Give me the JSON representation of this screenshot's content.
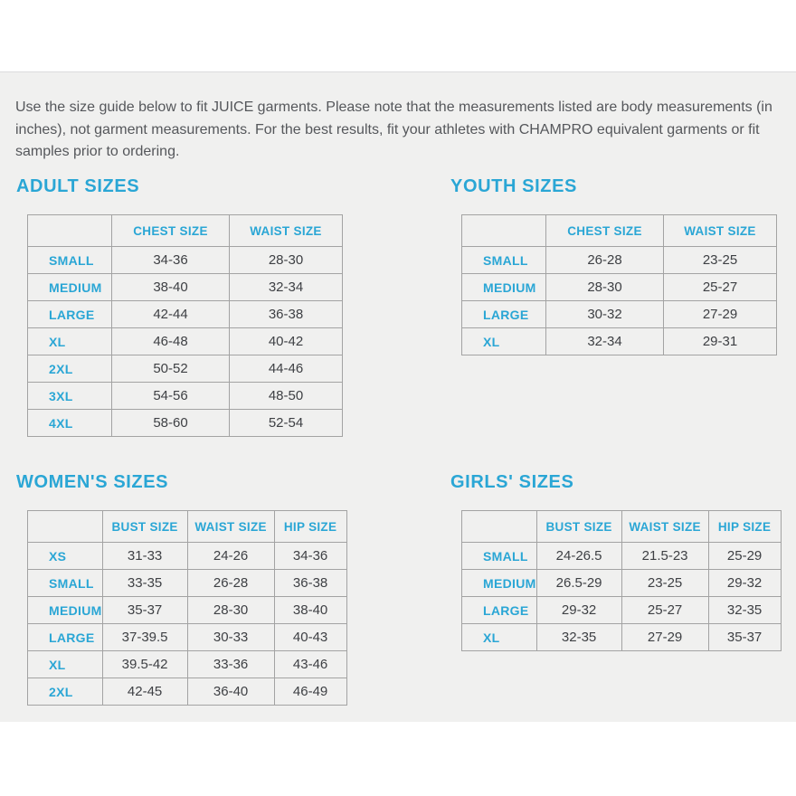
{
  "intro_text": "Use the size guide below to fit JUICE garments. Please note that the measurements listed are body measurements (in inches), not garment measurements. For the best results, fit your athletes with CHAMPRO equivalent garments or fit samples prior to ordering.",
  "colors": {
    "accent": "#2aa6d5",
    "body_text": "#55575b",
    "value_text": "#3e4044",
    "table_border": "#a3a3a3",
    "section_background": "#f0f0ef"
  },
  "tables": [
    {
      "title": "ADULT SIZES",
      "columns": [
        "",
        "CHEST SIZE",
        "WAIST SIZE"
      ],
      "rows": [
        {
          "label": "SMALL",
          "values": [
            "34-36",
            "28-30"
          ]
        },
        {
          "label": "MEDIUM",
          "values": [
            "38-40",
            "32-34"
          ]
        },
        {
          "label": "LARGE",
          "values": [
            "42-44",
            "36-38"
          ]
        },
        {
          "label": "XL",
          "values": [
            "46-48",
            "40-42"
          ]
        },
        {
          "label": "2XL",
          "values": [
            "50-52",
            "44-46"
          ]
        },
        {
          "label": "3XL",
          "values": [
            "54-56",
            "48-50"
          ]
        },
        {
          "label": "4XL",
          "values": [
            "58-60",
            "52-54"
          ]
        }
      ]
    },
    {
      "title": "YOUTH SIZES",
      "columns": [
        "",
        "CHEST SIZE",
        "WAIST SIZE"
      ],
      "rows": [
        {
          "label": "SMALL",
          "values": [
            "26-28",
            "23-25"
          ]
        },
        {
          "label": "MEDIUM",
          "values": [
            "28-30",
            "25-27"
          ]
        },
        {
          "label": "LARGE",
          "values": [
            "30-32",
            "27-29"
          ]
        },
        {
          "label": "XL",
          "values": [
            "32-34",
            "29-31"
          ]
        }
      ]
    },
    {
      "title": "WOMEN'S SIZES",
      "columns": [
        "",
        "BUST SIZE",
        "WAIST SIZE",
        "HIP SIZE"
      ],
      "rows": [
        {
          "label": "XS",
          "values": [
            "31-33",
            "24-26",
            "34-36"
          ]
        },
        {
          "label": "SMALL",
          "values": [
            "33-35",
            "26-28",
            "36-38"
          ]
        },
        {
          "label": "MEDIUM",
          "values": [
            "35-37",
            "28-30",
            "38-40"
          ]
        },
        {
          "label": "LARGE",
          "values": [
            "37-39.5",
            "30-33",
            "40-43"
          ]
        },
        {
          "label": "XL",
          "values": [
            "39.5-42",
            "33-36",
            "43-46"
          ]
        },
        {
          "label": "2XL",
          "values": [
            "42-45",
            "36-40",
            "46-49"
          ]
        }
      ]
    },
    {
      "title": "GIRLS' SIZES",
      "columns": [
        "",
        "BUST SIZE",
        "WAIST SIZE",
        "HIP SIZE"
      ],
      "rows": [
        {
          "label": "SMALL",
          "values": [
            "24-26.5",
            "21.5-23",
            "25-29"
          ]
        },
        {
          "label": "MEDIUM",
          "values": [
            "26.5-29",
            "23-25",
            "29-32"
          ]
        },
        {
          "label": "LARGE",
          "values": [
            "29-32",
            "25-27",
            "32-35"
          ]
        },
        {
          "label": "XL",
          "values": [
            "32-35",
            "27-29",
            "35-37"
          ]
        }
      ]
    }
  ]
}
